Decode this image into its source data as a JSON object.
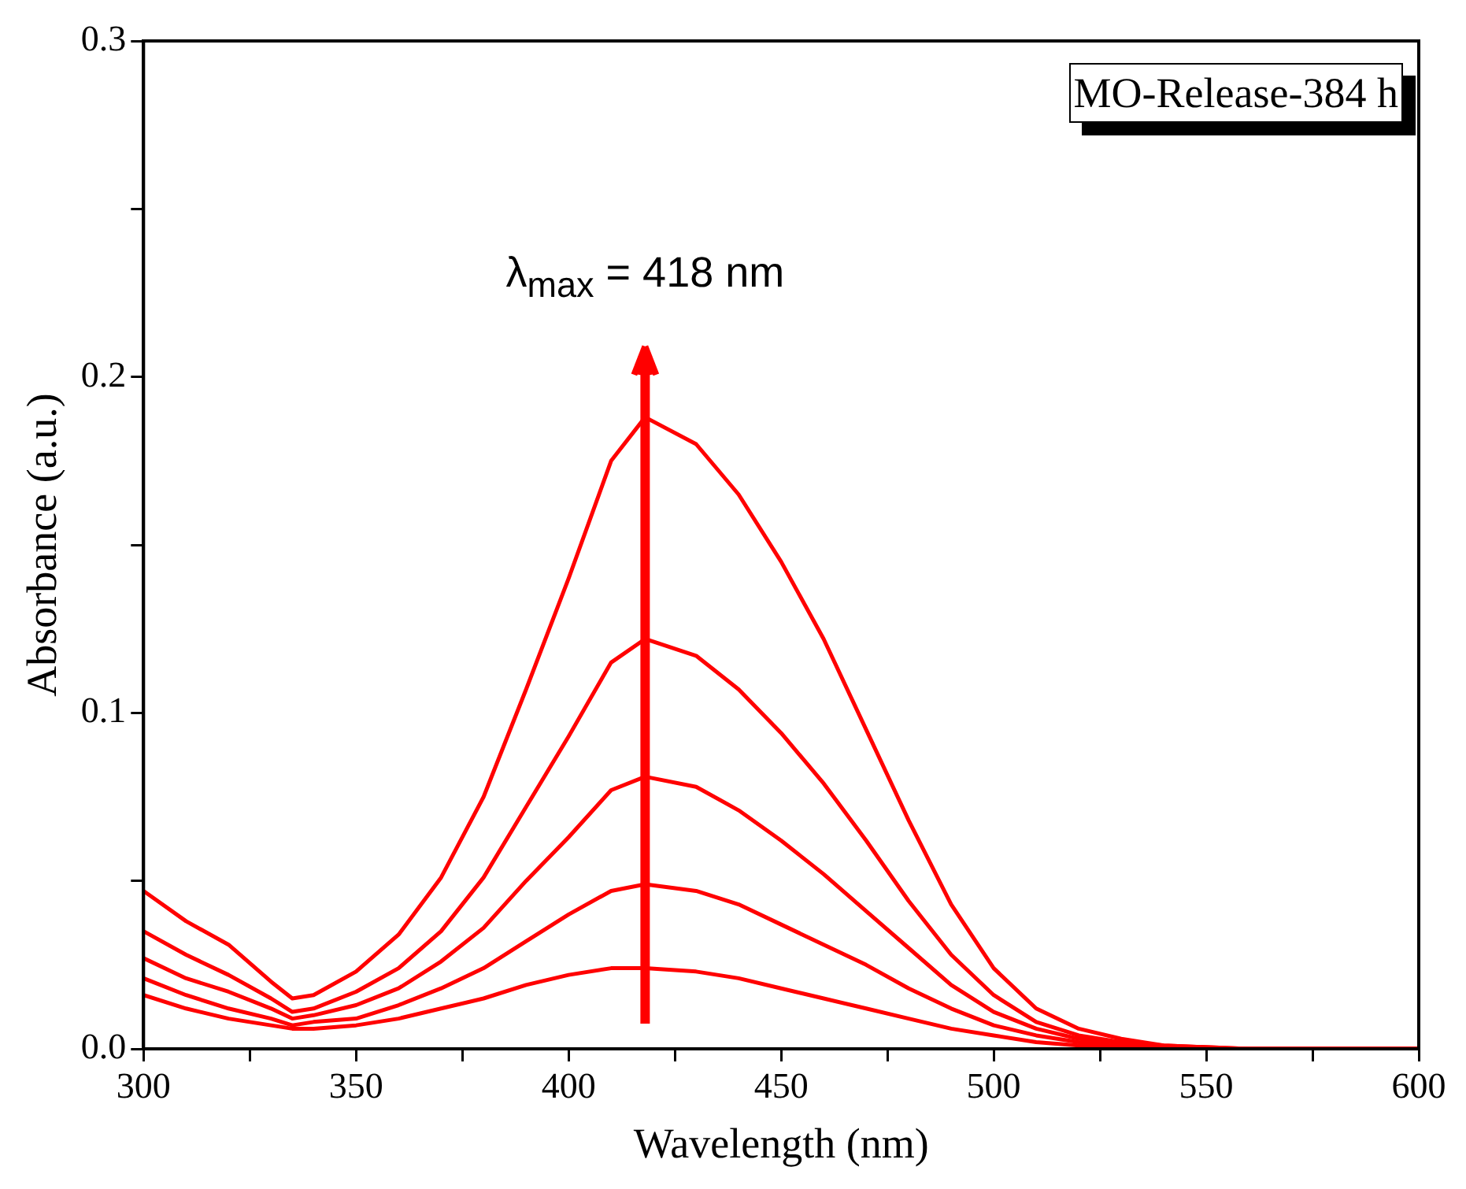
{
  "chart_data": {
    "type": "line",
    "xlabel": "Wavelength (nm)",
    "ylabel": "Absorbance (a.u.)",
    "x": [
      300,
      310,
      320,
      330,
      335,
      340,
      350,
      360,
      370,
      380,
      390,
      400,
      410,
      418,
      430,
      440,
      450,
      460,
      470,
      480,
      490,
      500,
      510,
      520,
      530,
      540,
      560,
      580,
      600
    ],
    "series": [
      {
        "color": "#ff0000",
        "values": [
          0.016,
          0.012,
          0.009,
          0.007,
          0.006,
          0.006,
          0.007,
          0.009,
          0.012,
          0.015,
          0.019,
          0.022,
          0.024,
          0.024,
          0.023,
          0.021,
          0.018,
          0.015,
          0.012,
          0.009,
          0.006,
          0.004,
          0.002,
          0.001,
          0.001,
          0,
          0,
          0,
          0
        ]
      },
      {
        "color": "#ff0000",
        "values": [
          0.021,
          0.016,
          0.012,
          0.009,
          0.007,
          0.008,
          0.009,
          0.013,
          0.018,
          0.024,
          0.032,
          0.04,
          0.047,
          0.049,
          0.047,
          0.043,
          0.037,
          0.031,
          0.025,
          0.018,
          0.012,
          0.007,
          0.004,
          0.002,
          0.001,
          0,
          0,
          0,
          0
        ]
      },
      {
        "color": "#ff0000",
        "values": [
          0.027,
          0.021,
          0.017,
          0.012,
          0.009,
          0.01,
          0.013,
          0.018,
          0.026,
          0.036,
          0.05,
          0.063,
          0.077,
          0.081,
          0.078,
          0.071,
          0.062,
          0.052,
          0.041,
          0.03,
          0.019,
          0.011,
          0.006,
          0.003,
          0.002,
          0,
          0,
          0,
          0
        ]
      },
      {
        "color": "#ff0000",
        "values": [
          0.035,
          0.028,
          0.022,
          0.015,
          0.011,
          0.012,
          0.017,
          0.024,
          0.035,
          0.051,
          0.072,
          0.093,
          0.115,
          0.122,
          0.117,
          0.107,
          0.094,
          0.079,
          0.062,
          0.044,
          0.028,
          0.016,
          0.008,
          0.004,
          0.002,
          0.001,
          0,
          0,
          0
        ]
      },
      {
        "color": "#ff0000",
        "values": [
          0.047,
          0.038,
          0.031,
          0.02,
          0.015,
          0.016,
          0.023,
          0.034,
          0.051,
          0.075,
          0.107,
          0.14,
          0.175,
          0.188,
          0.18,
          0.165,
          0.145,
          0.122,
          0.095,
          0.068,
          0.043,
          0.024,
          0.012,
          0.006,
          0.003,
          0.001,
          0,
          0,
          0
        ]
      }
    ],
    "xlim": [
      300,
      600
    ],
    "xticks": [
      300,
      {
        "value": 325,
        "label": null
      },
      350,
      {
        "value": 375,
        "label": null
      },
      400,
      {
        "value": 425,
        "label": null
      },
      450,
      {
        "value": 475,
        "label": null
      },
      500,
      {
        "value": 525,
        "label": null
      },
      550,
      {
        "value": 575,
        "label": null
      },
      600
    ],
    "ylim": [
      0,
      0.3
    ],
    "yticks": [
      {
        "value": 0,
        "label": "0.0"
      },
      {
        "value": 0.05,
        "label": null
      },
      0.1,
      {
        "value": 0.15,
        "label": null
      },
      0.2,
      {
        "value": 0.25,
        "label": null
      },
      0.3
    ],
    "grid": false,
    "legend": false,
    "marker": "none",
    "line_style": "solid",
    "ref_lines": [
      {
        "axis": "x",
        "value": 418,
        "label": "λ$_{max}$ = 418 nm",
        "color": "#ff0000"
      }
    ],
    "annotations": [
      "MO-Release-384 h"
    ]
  }
}
